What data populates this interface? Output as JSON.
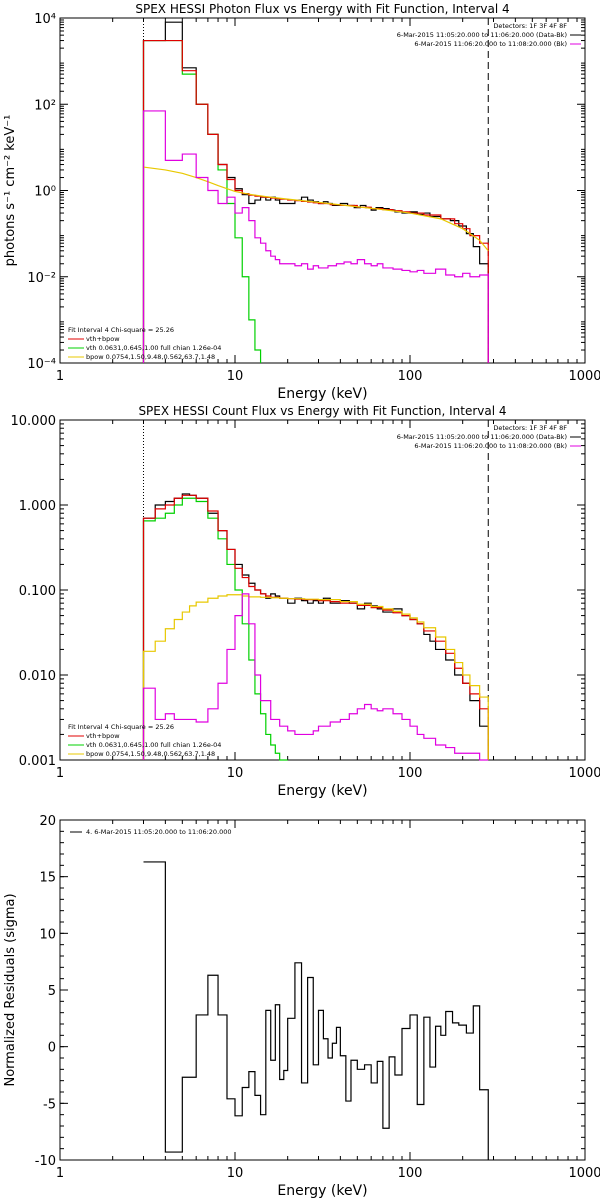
{
  "colors": {
    "data": "#000000",
    "total": "#e00000",
    "vth": "#00d000",
    "bpow": "#e8c800",
    "bk": "#e000e0"
  },
  "chart_data": [
    {
      "type": "line",
      "title": "SPEX HESSI Photon Flux vs Energy with Fit Function, Interval 4",
      "xlabel": "Energy (keV)",
      "ylabel": "photons s⁻¹ cm⁻² keV⁻¹",
      "xscale": "log",
      "yscale": "log",
      "xlim": [
        1,
        1000
      ],
      "ylim": [
        0.0001,
        10000
      ],
      "xticks": [
        {
          "v": 1,
          "label": "1"
        },
        {
          "v": 10,
          "label": "10"
        },
        {
          "v": 100,
          "label": "100"
        },
        {
          "v": 1000,
          "label": "1000"
        }
      ],
      "yticks": [
        {
          "v": 0.0001,
          "label": "10⁻⁴"
        },
        {
          "v": 0.01,
          "label": "10⁻²"
        },
        {
          "v": 1,
          "label": "10⁰"
        },
        {
          "v": 100,
          "label": "10²"
        },
        {
          "v": 10000,
          "label": "10⁴"
        }
      ],
      "legend_tr": [
        "Detectors: 1F 3F 4F 8F",
        "6-Mar-2015 11:05:20.000 to 11:06:20.000 (Data-Bk)",
        "6-Mar-2015 11:06:20.000 to 11:08:20.000 (Bk)"
      ],
      "legend_tr_colors": [
        "none",
        "data",
        "bk"
      ],
      "legend_bl": [
        "Fit Interval 4   Chi-square = 25.26",
        "vth+bpow",
        "vth 0.0631,0.645,1.00  full chian 1.26e-04",
        "bpow 0.0754,1.50,9.48,0.562,63.7,1.48"
      ],
      "legend_bl_colors": [
        "none",
        "total",
        "vth",
        "bpow"
      ],
      "vlines": [
        {
          "x": 3,
          "style": "dotted"
        },
        {
          "x": 280,
          "style": "dashed"
        }
      ],
      "series": [
        {
          "role": "data",
          "type": "step",
          "x": [
            3,
            4,
            5,
            6,
            7,
            8,
            9,
            10,
            11,
            12,
            13,
            14,
            15,
            16,
            17,
            18,
            20,
            22,
            24,
            26,
            28,
            30,
            32,
            34,
            36,
            40,
            44,
            48,
            52,
            56,
            60,
            64,
            70,
            76,
            82,
            90,
            100,
            110,
            120,
            130,
            150,
            170,
            190,
            210,
            230,
            250,
            280
          ],
          "y": [
            3000,
            8000,
            700,
            100,
            20,
            4,
            2,
            1.1,
            0.8,
            0.5,
            0.6,
            0.7,
            0.6,
            0.7,
            0.6,
            0.5,
            0.5,
            0.6,
            0.7,
            0.6,
            0.55,
            0.5,
            0.55,
            0.5,
            0.45,
            0.5,
            0.45,
            0.4,
            0.45,
            0.4,
            0.35,
            0.4,
            0.38,
            0.35,
            0.32,
            0.3,
            0.32,
            0.28,
            0.3,
            0.25,
            0.22,
            0.2,
            0.15,
            0.1,
            0.05,
            0.02,
            0.01
          ]
        },
        {
          "role": "vth",
          "type": "step",
          "x": [
            3,
            4,
            5,
            6,
            7,
            8,
            9,
            10,
            11,
            12,
            13,
            14
          ],
          "y": [
            3000,
            3000,
            500,
            100,
            20,
            3,
            0.5,
            0.08,
            0.01,
            0.001,
            0.0002,
            0.0001
          ]
        },
        {
          "role": "total",
          "type": "step",
          "x": [
            3,
            4,
            5,
            6,
            7,
            8,
            9,
            10,
            11,
            12,
            13,
            14,
            15,
            16,
            17,
            18,
            20,
            22,
            24,
            26,
            28,
            30,
            35,
            40,
            50,
            60,
            70,
            80,
            90,
            100,
            120,
            150,
            180,
            200,
            220,
            250,
            280
          ],
          "y": [
            3000,
            3000,
            600,
            100,
            20,
            4,
            1.8,
            1.0,
            0.85,
            0.78,
            0.74,
            0.71,
            0.69,
            0.67,
            0.65,
            0.63,
            0.6,
            0.58,
            0.56,
            0.54,
            0.52,
            0.5,
            0.47,
            0.45,
            0.41,
            0.38,
            0.36,
            0.34,
            0.32,
            0.3,
            0.27,
            0.22,
            0.17,
            0.13,
            0.09,
            0.06,
            0.04
          ]
        },
        {
          "role": "bpow",
          "type": "line",
          "x": [
            3,
            4,
            5,
            6,
            7,
            8,
            9,
            10,
            12,
            15,
            20,
            30,
            50,
            70,
            100,
            150,
            200,
            250,
            280
          ],
          "y": [
            3.5,
            3.0,
            2.5,
            2.0,
            1.6,
            1.3,
            1.1,
            0.95,
            0.82,
            0.72,
            0.63,
            0.53,
            0.42,
            0.36,
            0.3,
            0.22,
            0.13,
            0.07,
            0.04
          ]
        },
        {
          "role": "bk",
          "type": "step",
          "x": [
            3,
            4,
            5,
            6,
            7,
            8,
            9,
            10,
            11,
            12,
            13,
            14,
            15,
            16,
            17,
            18,
            20,
            22,
            24,
            26,
            28,
            30,
            34,
            38,
            42,
            46,
            50,
            55,
            60,
            65,
            70,
            80,
            90,
            100,
            110,
            120,
            140,
            160,
            180,
            200,
            220,
            250,
            280
          ],
          "y": [
            70,
            5,
            7,
            2,
            1,
            0.5,
            0.7,
            0.3,
            0.4,
            0.2,
            0.08,
            0.06,
            0.04,
            0.03,
            0.025,
            0.02,
            0.02,
            0.018,
            0.02,
            0.015,
            0.018,
            0.016,
            0.018,
            0.02,
            0.022,
            0.02,
            0.025,
            0.02,
            0.018,
            0.02,
            0.016,
            0.015,
            0.014,
            0.013,
            0.014,
            0.012,
            0.015,
            0.011,
            0.01,
            0.012,
            0.01,
            0.011,
            0.012
          ]
        }
      ]
    },
    {
      "type": "line",
      "title": "SPEX HESSI Count Flux vs Energy with Fit Function, Interval 4",
      "xlabel": "Energy (keV)",
      "ylabel": "",
      "xscale": "log",
      "yscale": "log",
      "xlim": [
        1,
        1000
      ],
      "ylim": [
        0.001,
        10
      ],
      "xticks": [
        {
          "v": 1,
          "label": "1"
        },
        {
          "v": 10,
          "label": "10"
        },
        {
          "v": 100,
          "label": "100"
        },
        {
          "v": 1000,
          "label": "1000"
        }
      ],
      "yticks": [
        {
          "v": 0.001,
          "label": "0.001"
        },
        {
          "v": 0.01,
          "label": "0.010"
        },
        {
          "v": 0.1,
          "label": "0.100"
        },
        {
          "v": 1,
          "label": "1.000"
        },
        {
          "v": 10,
          "label": "10.000"
        }
      ],
      "legend_tr": [
        "Detectors: 1F 3F 4F 8F",
        "6-Mar-2015 11:05:20.000 to 11:06:20.000 (Data-Bk)",
        "6-Mar-2015 11:06:20.000 to 11:08:20.000 (Bk)"
      ],
      "legend_tr_colors": [
        "none",
        "data",
        "bk"
      ],
      "legend_bl": [
        "Fit Interval 4   Chi-square = 25.26",
        "vth+bpow",
        "vth 0.0631,0.645,1.00  full chian 1.26e-04",
        "bpow 0.0754,1.50,9.48,0.562,63.7,1.48"
      ],
      "legend_bl_colors": [
        "none",
        "total",
        "vth",
        "bpow"
      ],
      "vlines": [
        {
          "x": 3,
          "style": "dotted"
        },
        {
          "x": 280,
          "style": "dashed"
        }
      ],
      "series": [
        {
          "role": "data",
          "type": "step",
          "x": [
            3,
            3.5,
            4,
            4.5,
            5,
            5.5,
            6,
            7,
            8,
            9,
            10,
            11,
            12,
            13,
            14,
            15,
            16,
            17,
            18,
            20,
            22,
            24,
            26,
            28,
            30,
            32,
            35,
            40,
            45,
            50,
            55,
            60,
            65,
            70,
            80,
            90,
            100,
            110,
            120,
            130,
            140,
            160,
            180,
            200,
            220,
            250,
            280
          ],
          "y": [
            0.7,
            1.0,
            1.1,
            1.2,
            1.35,
            1.3,
            1.2,
            0.8,
            0.5,
            0.3,
            0.2,
            0.15,
            0.12,
            0.1,
            0.09,
            0.08,
            0.09,
            0.085,
            0.08,
            0.07,
            0.08,
            0.075,
            0.07,
            0.075,
            0.07,
            0.08,
            0.07,
            0.075,
            0.07,
            0.06,
            0.07,
            0.065,
            0.06,
            0.055,
            0.06,
            0.05,
            0.045,
            0.04,
            0.03,
            0.025,
            0.02,
            0.015,
            0.01,
            0.008,
            0.005,
            0.0025,
            0.0015
          ]
        },
        {
          "role": "vth",
          "type": "step",
          "x": [
            3,
            3.5,
            4,
            4.5,
            5,
            5.5,
            6,
            7,
            8,
            9,
            10,
            11,
            12,
            13,
            14,
            15,
            16,
            17,
            18,
            20
          ],
          "y": [
            0.65,
            0.7,
            0.8,
            1.0,
            1.2,
            1.2,
            1.1,
            0.7,
            0.4,
            0.2,
            0.1,
            0.04,
            0.015,
            0.006,
            0.0035,
            0.002,
            0.0015,
            0.0012,
            0.001,
            0.001
          ]
        },
        {
          "role": "total",
          "type": "step",
          "x": [
            3,
            3.5,
            4,
            4.5,
            5,
            5.5,
            6,
            7,
            8,
            9,
            10,
            11,
            12,
            13,
            14,
            15,
            16,
            18,
            20,
            22,
            25,
            30,
            35,
            40,
            50,
            60,
            70,
            80,
            90,
            100,
            110,
            120,
            140,
            160,
            180,
            200,
            220,
            250,
            280
          ],
          "y": [
            0.7,
            0.9,
            1.0,
            1.2,
            1.3,
            1.3,
            1.2,
            0.85,
            0.5,
            0.3,
            0.18,
            0.14,
            0.11,
            0.1,
            0.09,
            0.085,
            0.082,
            0.08,
            0.079,
            0.078,
            0.077,
            0.075,
            0.073,
            0.07,
            0.066,
            0.062,
            0.058,
            0.054,
            0.05,
            0.045,
            0.04,
            0.033,
            0.025,
            0.018,
            0.012,
            0.008,
            0.006,
            0.004,
            0.003
          ]
        },
        {
          "role": "bpow",
          "type": "step",
          "x": [
            3,
            3.5,
            4,
            4.5,
            5,
            5.5,
            6,
            7,
            8,
            9,
            10,
            11,
            12,
            14,
            16,
            18,
            20,
            25,
            30,
            40,
            50,
            60,
            70,
            80,
            90,
            100,
            110,
            120,
            140,
            160,
            180,
            200,
            220,
            250,
            280
          ],
          "y": [
            0.019,
            0.025,
            0.035,
            0.045,
            0.055,
            0.065,
            0.072,
            0.08,
            0.085,
            0.088,
            0.088,
            0.085,
            0.083,
            0.082,
            0.081,
            0.08,
            0.079,
            0.078,
            0.077,
            0.073,
            0.068,
            0.064,
            0.06,
            0.056,
            0.052,
            0.047,
            0.042,
            0.036,
            0.028,
            0.02,
            0.014,
            0.01,
            0.0075,
            0.0055,
            0.0045
          ]
        },
        {
          "role": "bk",
          "type": "step",
          "x": [
            3,
            3.5,
            4,
            4.5,
            5,
            5.5,
            6,
            7,
            8,
            9,
            10,
            11,
            12,
            13,
            14,
            16,
            18,
            20,
            22,
            25,
            28,
            30,
            35,
            40,
            45,
            50,
            55,
            60,
            65,
            70,
            80,
            90,
            100,
            110,
            120,
            140,
            160,
            180,
            200,
            220,
            250,
            280
          ],
          "y": [
            0.007,
            0.003,
            0.0035,
            0.003,
            0.003,
            0.003,
            0.0028,
            0.004,
            0.008,
            0.02,
            0.05,
            0.09,
            0.04,
            0.01,
            0.005,
            0.003,
            0.0025,
            0.0022,
            0.002,
            0.002,
            0.0022,
            0.0025,
            0.0028,
            0.003,
            0.0035,
            0.004,
            0.0045,
            0.004,
            0.0038,
            0.004,
            0.0035,
            0.003,
            0.0025,
            0.002,
            0.0018,
            0.0015,
            0.0014,
            0.0012,
            0.0012,
            0.0012,
            0.001,
            0.001
          ]
        }
      ]
    },
    {
      "type": "line",
      "title": "",
      "xlabel": "Energy (keV)",
      "ylabel": "Normalized Residuals (sigma)",
      "xscale": "log",
      "yscale": "linear",
      "xlim": [
        1,
        1000
      ],
      "ylim": [
        -10,
        20
      ],
      "xticks": [
        {
          "v": 1,
          "label": "1"
        },
        {
          "v": 10,
          "label": "10"
        },
        {
          "v": 100,
          "label": "100"
        },
        {
          "v": 1000,
          "label": "1000"
        }
      ],
      "yticks": [
        {
          "v": -10,
          "label": "-10"
        },
        {
          "v": -5,
          "label": "-5"
        },
        {
          "v": 0,
          "label": "0"
        },
        {
          "v": 5,
          "label": "5"
        },
        {
          "v": 10,
          "label": "10"
        },
        {
          "v": 15,
          "label": "15"
        },
        {
          "v": 20,
          "label": "20"
        }
      ],
      "legend_tl": [
        "4.  6-Mar-2015 11:05:20.000 to 11:06:20.000"
      ],
      "series": [
        {
          "role": "data",
          "type": "step",
          "x": [
            3,
            4,
            5,
            6,
            7,
            8,
            9,
            10,
            11,
            12,
            13,
            14,
            15,
            16,
            17,
            18,
            19,
            20,
            22,
            24,
            26,
            28,
            30,
            32,
            34,
            36,
            38,
            40,
            43,
            46,
            50,
            55,
            60,
            65,
            70,
            76,
            82,
            90,
            100,
            110,
            120,
            130,
            140,
            150,
            160,
            175,
            190,
            210,
            230,
            250,
            280
          ],
          "y": [
            16.3,
            -9.3,
            -2.7,
            2.8,
            6.3,
            2.8,
            -4.6,
            -6.1,
            -3.6,
            -2.2,
            -4.3,
            -6.0,
            3.2,
            -1.2,
            3.7,
            -2.9,
            -2.1,
            2.5,
            7.4,
            -3.2,
            6.1,
            -1.6,
            3.2,
            0.7,
            -1.0,
            0.3,
            1.7,
            -0.8,
            -4.8,
            -1.2,
            -2.0,
            -1.6,
            -3.2,
            -1.3,
            -7.2,
            -0.9,
            -2.5,
            1.6,
            2.8,
            -5.1,
            2.6,
            -1.8,
            1.8,
            1.0,
            3.1,
            2.1,
            1.9,
            1.2,
            3.6,
            -3.8,
            -10
          ]
        }
      ]
    }
  ]
}
